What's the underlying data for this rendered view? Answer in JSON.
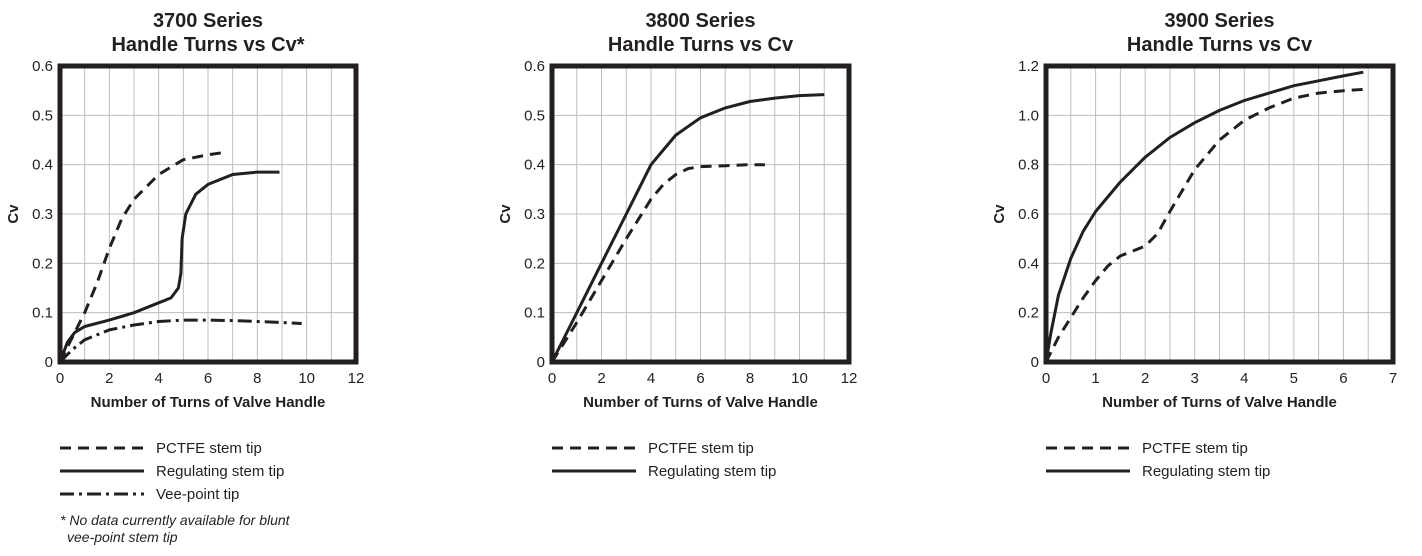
{
  "chart_data": [
    {
      "type": "line",
      "title": "3700 Series",
      "subtitle": "Handle Turns vs Cv*",
      "xlabel": "Number of Turns of Valve Handle",
      "ylabel": "Cv",
      "xlim": [
        0,
        12
      ],
      "ylim": [
        0,
        0.6
      ],
      "xticks": [
        "0",
        "2",
        "4",
        "6",
        "8",
        "10",
        "12"
      ],
      "yticks": [
        "0",
        "0.1",
        "0.2",
        "0.3",
        "0.4",
        "0.5",
        "0.6"
      ],
      "grid": true,
      "legend_position": "below",
      "series": [
        {
          "name": "PCTFE stem tip",
          "style": "dashed",
          "x": [
            0,
            0.5,
            1,
            1.5,
            2,
            2.5,
            3,
            4,
            5,
            6,
            6.7
          ],
          "y": [
            0,
            0.05,
            0.1,
            0.16,
            0.23,
            0.29,
            0.33,
            0.38,
            0.41,
            0.42,
            0.425
          ]
        },
        {
          "name": "Regulating stem tip",
          "style": "solid",
          "x": [
            0,
            0.3,
            0.6,
            1,
            2,
            3,
            4,
            4.5,
            4.8,
            4.9,
            4.95,
            5.1,
            5.5,
            6,
            7,
            8,
            8.9
          ],
          "y": [
            0,
            0.04,
            0.06,
            0.072,
            0.085,
            0.1,
            0.12,
            0.13,
            0.15,
            0.18,
            0.25,
            0.3,
            0.34,
            0.36,
            0.38,
            0.385,
            0.385
          ]
        },
        {
          "name": "Vee-point tip",
          "style": "dashdot",
          "x": [
            0,
            0.5,
            1,
            2,
            3,
            4,
            5,
            6,
            7,
            8,
            9,
            9.8
          ],
          "y": [
            0,
            0.025,
            0.045,
            0.065,
            0.075,
            0.082,
            0.085,
            0.085,
            0.084,
            0.082,
            0.08,
            0.078
          ]
        }
      ],
      "footnote": [
        "* No data currently available for blunt",
        "vee-point stem tip"
      ]
    },
    {
      "type": "line",
      "title": "3800 Series",
      "subtitle": "Handle Turns vs Cv",
      "xlabel": "Number of Turns of Valve Handle",
      "ylabel": "Cv",
      "xlim": [
        0,
        12
      ],
      "ylim": [
        0,
        0.6
      ],
      "xticks": [
        "0",
        "2",
        "4",
        "6",
        "8",
        "10",
        "12"
      ],
      "yticks": [
        "0",
        "0.1",
        "0.2",
        "0.3",
        "0.4",
        "0.5",
        "0.6"
      ],
      "grid": true,
      "legend_position": "below",
      "series": [
        {
          "name": "PCTFE stem tip",
          "style": "dashed",
          "x": [
            0,
            1,
            2,
            3,
            4,
            4.5,
            5,
            5.5,
            6,
            7,
            8,
            8.6
          ],
          "y": [
            0,
            0.08,
            0.165,
            0.25,
            0.33,
            0.36,
            0.38,
            0.392,
            0.396,
            0.398,
            0.4,
            0.4
          ]
        },
        {
          "name": "Regulating stem tip",
          "style": "solid",
          "x": [
            0,
            1,
            2,
            3,
            4,
            4.5,
            5,
            6,
            7,
            8,
            9,
            10,
            11
          ],
          "y": [
            0,
            0.1,
            0.2,
            0.3,
            0.4,
            0.43,
            0.46,
            0.495,
            0.515,
            0.528,
            0.535,
            0.54,
            0.542
          ]
        }
      ]
    },
    {
      "type": "line",
      "title": "3900 Series",
      "subtitle": "Handle Turns vs Cv",
      "xlabel": "Number of Turns of Valve Handle",
      "ylabel": "Cv",
      "xlim": [
        0,
        7
      ],
      "ylim": [
        0,
        1.2
      ],
      "xticks": [
        "0",
        "1",
        "2",
        "3",
        "4",
        "5",
        "6",
        "7"
      ],
      "yticks": [
        "0",
        "0.2",
        "0.4",
        "0.6",
        "0.8",
        "1.0",
        "1.2"
      ],
      "grid": true,
      "legend_position": "below",
      "series": [
        {
          "name": "PCTFE stem tip",
          "style": "dashed",
          "x": [
            0,
            0.25,
            0.5,
            0.75,
            1,
            1.25,
            1.5,
            1.75,
            2,
            2.25,
            2.5,
            3,
            3.5,
            4,
            4.5,
            5,
            5.5,
            6,
            6.4
          ],
          "y": [
            0,
            0.1,
            0.18,
            0.26,
            0.33,
            0.39,
            0.43,
            0.45,
            0.47,
            0.52,
            0.61,
            0.78,
            0.9,
            0.98,
            1.03,
            1.07,
            1.09,
            1.1,
            1.105
          ]
        },
        {
          "name": "Regulating stem tip",
          "style": "solid",
          "x": [
            0,
            0.1,
            0.25,
            0.5,
            0.75,
            1,
            1.5,
            2,
            2.5,
            3,
            3.5,
            4,
            4.5,
            5,
            5.5,
            6,
            6.4
          ],
          "y": [
            0,
            0.12,
            0.27,
            0.42,
            0.53,
            0.61,
            0.73,
            0.83,
            0.91,
            0.97,
            1.02,
            1.06,
            1.09,
            1.12,
            1.14,
            1.16,
            1.175
          ]
        }
      ]
    }
  ]
}
